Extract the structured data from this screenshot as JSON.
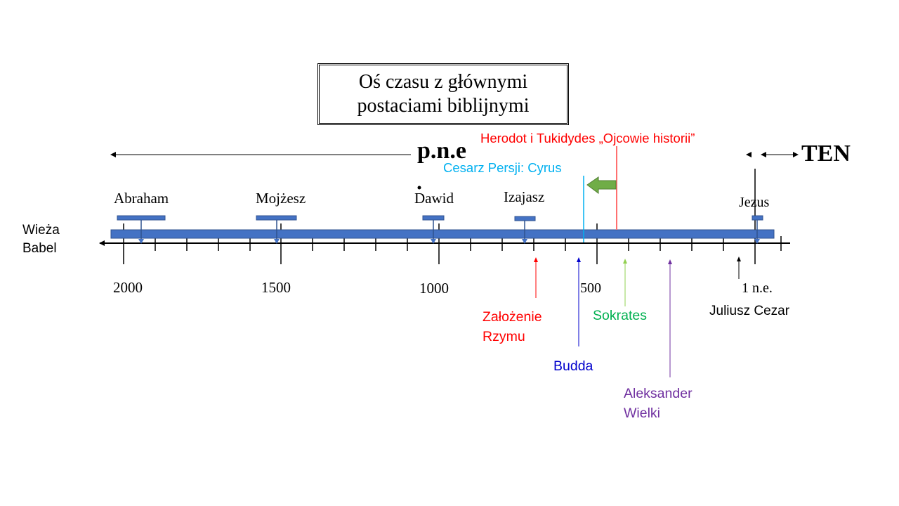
{
  "title": {
    "line1": "Oś czasu z głównymi",
    "line2": "postaciami biblijnymi"
  },
  "eras": {
    "bce": "p.n.e",
    "ce": "TEN"
  },
  "figures": [
    "Abraham",
    "Mojżesz",
    "Dawid",
    "Izajasz",
    "Jezus"
  ],
  "years": [
    "2000",
    "1500",
    "1000",
    "500",
    "1 n.e."
  ],
  "left_label": {
    "line1": "Wieża",
    "line2": "Babel"
  },
  "events": {
    "herodot": "Herodot i Tukidydes „Ojcowie historii”",
    "cyrus": "Cesarz Persji: Cyrus",
    "rzym_1": "Założenie",
    "rzym_2": "Rzymu",
    "budda": "Budda",
    "sokrates": "Sokrates",
    "aleksander_1": "Aleksander",
    "aleksander_2": "Wielki",
    "cezar": "Juliusz Cezar"
  },
  "colors": {
    "bar": "#4472c4",
    "red": "#ff0000",
    "cyan": "#00b0f0",
    "blue": "#0000cc",
    "green": "#00b050",
    "lightgreen": "#92d050",
    "purple": "#7030a0",
    "black": "#000000"
  }
}
